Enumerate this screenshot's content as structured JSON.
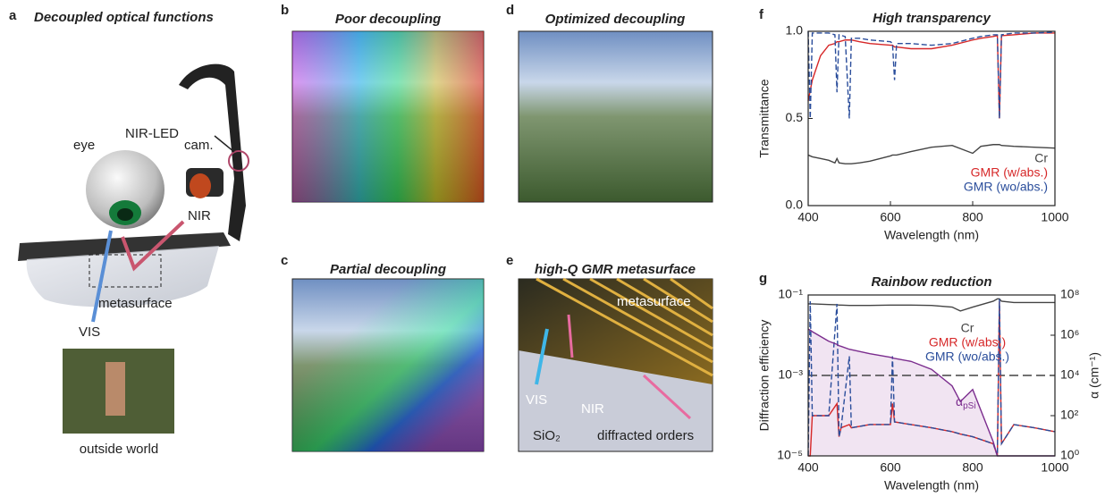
{
  "panel_a": {
    "letter": "a",
    "title": "Decoupled optical functions",
    "labels": [
      "NIR-LED",
      "eye",
      "cam.",
      "NIR",
      "VIS",
      "metasurface",
      "outside world"
    ]
  },
  "panel_b": {
    "letter": "b",
    "title": "Poor decoupling"
  },
  "panel_c": {
    "letter": "c",
    "title": "Partial decoupling"
  },
  "panel_d": {
    "letter": "d",
    "title": "Optimized decoupling"
  },
  "panel_e": {
    "letter": "e",
    "title": "high-Q GMR metasurface",
    "labels": [
      "metasurface",
      "VIS",
      "NIR",
      "SiO₂",
      "diffracted orders"
    ]
  },
  "chart_data": [
    {
      "type": "line",
      "panel_label": "f",
      "title": "High transparency",
      "xlabel": "Wavelength (nm)",
      "ylabel": "Transmittance",
      "x": [
        400,
        405,
        410,
        430,
        450,
        465,
        470,
        475,
        490,
        500,
        505,
        525,
        550,
        600,
        605,
        610,
        615,
        650,
        700,
        750,
        800,
        820,
        850,
        860,
        865,
        870,
        900,
        950,
        1000
      ],
      "xlim": [
        400,
        1000
      ],
      "xticks": [
        400,
        600,
        800,
        1000
      ],
      "ylim": [
        0,
        1
      ],
      "yticks": [
        {
          "value": 0,
          "label": "0.0"
        },
        {
          "value": 0.5,
          "label": "0.5"
        },
        {
          "value": 1,
          "label": "1.0"
        }
      ],
      "legend": "lower right",
      "series": [
        {
          "name": "Cr",
          "color": "#444444",
          "linestyle": "solid",
          "values": [
            0.29,
            0.285,
            0.28,
            0.27,
            0.26,
            0.245,
            0.27,
            0.245,
            0.24,
            0.24,
            0.24,
            0.245,
            0.255,
            0.285,
            0.29,
            0.29,
            0.29,
            0.31,
            0.335,
            0.345,
            0.3,
            0.34,
            0.35,
            0.35,
            0.35,
            0.345,
            0.34,
            0.335,
            0.33
          ]
        },
        {
          "name": "GMR (w/abs.)",
          "color": "#d62728",
          "linestyle": "solid",
          "values": [
            0.6,
            0.66,
            0.72,
            0.86,
            0.92,
            0.93,
            0.94,
            0.94,
            0.95,
            0.95,
            0.95,
            0.94,
            0.93,
            0.92,
            0.92,
            0.91,
            0.91,
            0.9,
            0.9,
            0.92,
            0.95,
            0.96,
            0.97,
            0.975,
            0.5,
            0.975,
            0.98,
            0.99,
            0.99
          ]
        },
        {
          "name": "GMR (wo/abs.)",
          "color": "#2a4d9b",
          "linestyle": "dashed",
          "values": [
            1,
            0.5,
            0.99,
            0.99,
            0.99,
            0.98,
            0.65,
            0.98,
            0.97,
            0.5,
            0.96,
            0.96,
            0.95,
            0.94,
            0.93,
            0.72,
            0.93,
            0.93,
            0.92,
            0.93,
            0.96,
            0.97,
            0.98,
            0.98,
            0.5,
            0.98,
            0.99,
            0.99,
            0.995
          ]
        }
      ]
    },
    {
      "type": "line",
      "panel_label": "g",
      "title": "Rainbow reduction",
      "xlabel": "Wavelength (nm)",
      "ylabel": "Diffraction efficiency",
      "y2label": "α (cm⁻¹)",
      "x": [
        400,
        405,
        410,
        450,
        470,
        475,
        480,
        500,
        505,
        550,
        600,
        605,
        610,
        650,
        700,
        750,
        770,
        800,
        850,
        860,
        865,
        870,
        900,
        950,
        1000
      ],
      "xlim": [
        400,
        1000
      ],
      "xticks": [
        400,
        600,
        800,
        1000
      ],
      "ylim": [
        1e-05,
        0.1
      ],
      "ylog": true,
      "yticks": [
        {
          "value": 1e-05,
          "label": "10⁻⁵"
        },
        {
          "value": 0.001,
          "label": "10⁻³"
        },
        {
          "value": 0.1,
          "label": "10⁻¹"
        }
      ],
      "y2lim": [
        1,
        100000000
      ],
      "y2log": true,
      "y2ticks": [
        {
          "value": 1,
          "label": "10⁰"
        },
        {
          "value": 100,
          "label": "10²"
        },
        {
          "value": 10000,
          "label": "10⁴"
        },
        {
          "value": 1000000,
          "label": "10⁶"
        },
        {
          "value": 100000000,
          "label": "10⁸"
        }
      ],
      "reference_line": 0.001,
      "legend": "upper center",
      "series": [
        {
          "name": "Cr",
          "color": "#444444",
          "linestyle": "solid",
          "values": [
            0.06,
            0.06,
            0.06,
            0.058,
            0.057,
            0.056,
            0.056,
            0.055,
            0.055,
            0.055,
            0.056,
            0.056,
            0.056,
            0.056,
            0.055,
            0.05,
            0.04,
            0.05,
            0.07,
            0.08,
            0.08,
            0.07,
            0.065,
            0.065,
            0.065
          ]
        },
        {
          "name": "GMR (w/abs.)",
          "color": "#d62728",
          "linestyle": "solid",
          "values": [
            1e-05,
            1e-05,
            0.0001,
            0.0001,
            0.0002,
            3e-05,
            5e-05,
            6e-05,
            5e-05,
            6e-05,
            6e-05,
            0.0002,
            7e-05,
            6e-05,
            5e-05,
            4e-05,
            3.5e-05,
            3e-05,
            2e-05,
            1e-05,
            0.07,
            2e-05,
            6e-05,
            5e-05,
            4e-05
          ]
        },
        {
          "name": "GMR (wo/abs.)",
          "color": "#2a4d9b",
          "linestyle": "dashed",
          "values": [
            1e-05,
            0.07,
            0.0001,
            0.0001,
            0.06,
            3e-05,
            5e-05,
            0.003,
            5e-05,
            6e-05,
            6e-05,
            0.003,
            7e-05,
            6e-05,
            5e-05,
            4e-05,
            3.5e-05,
            3e-05,
            2e-05,
            1e-05,
            0.08,
            2e-05,
            6e-05,
            5e-05,
            4e-05
          ]
        },
        {
          "label": {
            "symbol": "α",
            "subscript": "pSi"
          },
          "color": "#7b2d8e",
          "linestyle": "solid",
          "axis": "y2",
          "area": true,
          "area_color": "#f1e4f2",
          "values": [
            2000000,
            1800000,
            1500000,
            500000,
            350000,
            300000,
            280000,
            200000,
            190000,
            120000,
            80000,
            75000,
            70000,
            50000,
            20000,
            3000,
            500,
            2000,
            5,
            1,
            1,
            1,
            1,
            1,
            1
          ]
        }
      ]
    }
  ]
}
